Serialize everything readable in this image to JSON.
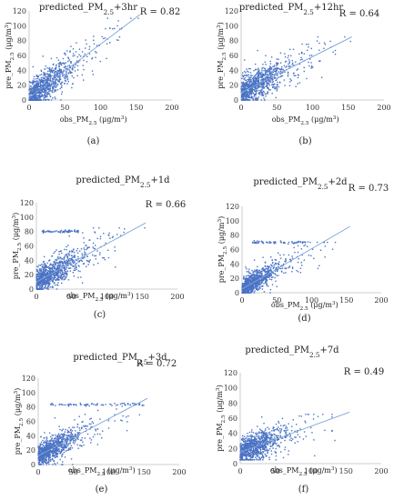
{
  "figure": {
    "axis_xlabel": "obs_PM2.5 (μg/m³)",
    "axis_ylabel": "pre_PM2.5 (μg/m³)",
    "point_color": "#4a72c4",
    "line_color": "#7fa6d9"
  },
  "chart_data": [
    {
      "type": "scatter",
      "panel_label": "(a)",
      "title": "predicted_PM2.5+3hr",
      "annotation": "R = 0.82",
      "xlabel": "obs_PM2.5 (μg/m³)",
      "ylabel": "pre_PM2.5 (μg/m³)",
      "xlim": [
        0,
        200
      ],
      "ylim": [
        0,
        120
      ],
      "xticks": [
        0,
        50,
        100,
        150,
        200
      ],
      "yticks": [
        0,
        20,
        40,
        60,
        80,
        100,
        120
      ],
      "trendline": {
        "x": [
          0,
          155
        ],
        "y": [
          3,
          115
        ]
      },
      "point_cloud": {
        "x_range": [
          0,
          160
        ],
        "y_range": [
          0,
          110
        ],
        "dense_core": {
          "x": [
            0,
            60
          ],
          "y": [
            0,
            45
          ]
        }
      }
    },
    {
      "type": "scatter",
      "panel_label": "(b)",
      "title": "predicted_PM2.5+12hr",
      "annotation": "R = 0.64",
      "xlabel": "obs_PM2.5 (μg/m³)",
      "ylabel": "pre_PM2.5 (μg/m³)",
      "xlim": [
        0,
        200
      ],
      "ylim": [
        0,
        120
      ],
      "xticks": [
        0,
        50,
        100,
        150,
        200
      ],
      "yticks": [
        0,
        20,
        40,
        60,
        80,
        100,
        120
      ],
      "trendline": {
        "x": [
          0,
          155
        ],
        "y": [
          10,
          85
        ]
      },
      "point_cloud": {
        "x_range": [
          0,
          155
        ],
        "y_range": [
          0,
          85
        ],
        "dense_core": {
          "x": [
            0,
            60
          ],
          "y": [
            0,
            45
          ]
        }
      }
    },
    {
      "type": "scatter",
      "panel_label": "(c)",
      "title": "predicted_PM2.5+1d",
      "annotation": "R = 0.66",
      "xlabel": "obs_PM2.5 (μg/m³)",
      "ylabel": "pre_PM2.5 (μg/m³)",
      "xlim": [
        0,
        200
      ],
      "ylim": [
        0,
        120
      ],
      "xticks": [
        0,
        50,
        100,
        150,
        200
      ],
      "yticks": [
        0,
        20,
        40,
        60,
        80,
        100,
        120
      ],
      "trendline": {
        "x": [
          0,
          155
        ],
        "y": [
          10,
          92
        ]
      },
      "point_cloud": {
        "x_range": [
          0,
          155
        ],
        "y_range": [
          0,
          85
        ],
        "dense_core": {
          "x": [
            0,
            60
          ],
          "y": [
            0,
            40
          ]
        }
      },
      "saturation_band": {
        "y": 80,
        "x_range": [
          5,
          60
        ]
      }
    },
    {
      "type": "scatter",
      "panel_label": "(d)",
      "title": "predicted_PM2.5+2d",
      "annotation": "R = 0.73",
      "xlabel": "obs_PM2.5 (μg/m³)",
      "ylabel": "pre_PM2.5 (μg/m³)",
      "xlim": [
        0,
        200
      ],
      "ylim": [
        0,
        120
      ],
      "xticks": [
        0,
        50,
        100,
        150,
        200
      ],
      "yticks": [
        0,
        20,
        40,
        60,
        80,
        100,
        120
      ],
      "trendline": {
        "x": [
          0,
          155
        ],
        "y": [
          5,
          92
        ]
      },
      "point_cloud": {
        "x_range": [
          0,
          155
        ],
        "y_range": [
          0,
          70
        ],
        "dense_core": {
          "x": [
            0,
            50
          ],
          "y": [
            0,
            30
          ]
        }
      },
      "saturation_band": {
        "y": 70,
        "x_range": [
          15,
          95
        ]
      }
    },
    {
      "type": "scatter",
      "panel_label": "(e)",
      "title": "predicted_PM2.5+3d",
      "annotation": "R = 0.72",
      "xlabel": "obs_PM2.5 (μg/m³)",
      "ylabel": "pre_PM2.5 (μg/m³)",
      "xlim": [
        0,
        200
      ],
      "ylim": [
        0,
        120
      ],
      "xticks": [
        0,
        50,
        100,
        150,
        200
      ],
      "yticks": [
        0,
        20,
        40,
        60,
        80,
        100,
        120
      ],
      "trendline": {
        "x": [
          0,
          155
        ],
        "y": [
          12,
          92
        ]
      },
      "point_cloud": {
        "x_range": [
          0,
          155
        ],
        "y_range": [
          0,
          85
        ],
        "dense_core": {
          "x": [
            0,
            55
          ],
          "y": [
            5,
            40
          ]
        }
      },
      "saturation_band": {
        "y": 83,
        "x_range": [
          15,
          150
        ]
      }
    },
    {
      "type": "scatter",
      "panel_label": "(f)",
      "title": "predicted_PM2.5+7d",
      "annotation": "R = 0.49",
      "xlabel": "obs_PM2.5 (μg/m³)",
      "ylabel": "pre_PM2.5 (μg/m³)",
      "xlim": [
        0,
        200
      ],
      "ylim": [
        0,
        120
      ],
      "xticks": [
        0,
        50,
        100,
        150,
        200
      ],
      "yticks": [
        0,
        20,
        40,
        60,
        80,
        100,
        120
      ],
      "trendline": {
        "x": [
          0,
          155
        ],
        "y": [
          15,
          68
        ]
      },
      "point_cloud": {
        "x_range": [
          0,
          155
        ],
        "y_range": [
          5,
          65
        ],
        "dense_core": {
          "x": [
            0,
            60
          ],
          "y": [
            10,
            50
          ]
        }
      }
    }
  ]
}
